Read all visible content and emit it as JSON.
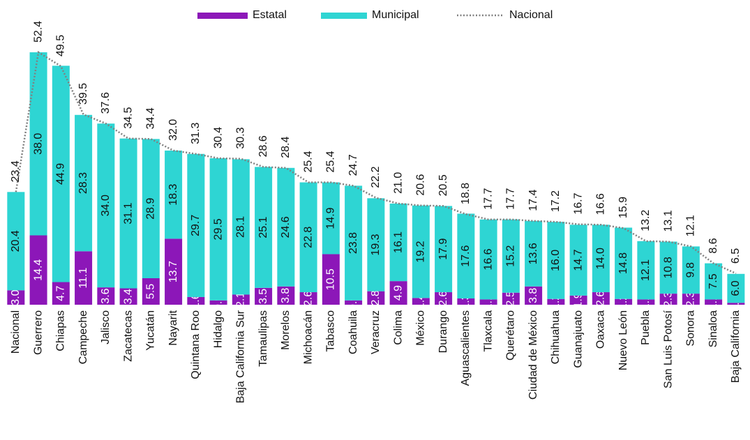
{
  "chart_data": {
    "type": "bar",
    "stacked": true,
    "categories": [
      "Nacional",
      "Guerrero",
      "Chiapas",
      "Campeche",
      "Jalisco",
      "Zacatecas",
      "Yucatán",
      "Nayarit",
      "Quintana Roo",
      "Hidalgo",
      "Baja California Sur",
      "Tamaulipas",
      "Morelos",
      "Michoacán",
      "Tabasco",
      "Coahuila",
      "Veracruz",
      "Colima",
      "México",
      "Durango",
      "Aguascalientes",
      "Tlaxcala",
      "Querétaro",
      "Ciudad de México",
      "Chihuahua",
      "Guanajuato",
      "Oaxaca",
      "Nuevo León",
      "Puebla",
      "San Luis Potosí",
      "Sonora",
      "Sinaloa",
      "Baja California"
    ],
    "series": [
      {
        "name": "Estatal",
        "color": "#8c17b8",
        "values": [
          3.0,
          14.4,
          4.7,
          11.1,
          3.6,
          3.4,
          5.5,
          13.7,
          1.6,
          0.9,
          2.1,
          3.5,
          3.8,
          2.6,
          10.5,
          0.9,
          2.8,
          4.9,
          1.4,
          2.6,
          1.3,
          1.1,
          2.5,
          3.8,
          1.2,
          1.9,
          2.6,
          1.2,
          1.1,
          2.3,
          2.3,
          1.1,
          0.4
        ],
        "value_labels": [
          "3.0",
          "14.4",
          "4.7",
          "11.1",
          "3.6",
          "3.4",
          "5.5",
          "13.7",
          "1.6",
          "0.9",
          "2.1",
          "3.5",
          "3.8",
          "2.6",
          "10.5",
          "0.9",
          "2.8",
          "4.9",
          "1.4",
          "2.6",
          "1.3",
          "1.1",
          "2.5",
          "3.8",
          "1.2",
          "1.9",
          "2.6",
          "1.2",
          "1.1",
          "2.3",
          "2.3",
          "1.1",
          "0.4"
        ]
      },
      {
        "name": "Municipal",
        "color": "#2ed5d3",
        "values": [
          20.4,
          38.0,
          44.9,
          28.3,
          34.0,
          31.1,
          28.9,
          18.3,
          29.7,
          29.5,
          28.1,
          25.1,
          24.6,
          22.8,
          14.9,
          23.8,
          19.3,
          16.1,
          19.2,
          17.9,
          17.6,
          16.6,
          15.2,
          13.6,
          16.0,
          14.7,
          14.0,
          14.8,
          12.1,
          10.8,
          9.8,
          7.5,
          6.0
        ],
        "value_labels": [
          "20.4",
          "38.0",
          "44.9",
          "28.3",
          "34.0",
          "31.1",
          "28.9",
          "18.3",
          "29.7",
          "29.5",
          "28.1",
          "25.1",
          "24.6",
          "22.8",
          "14.9",
          "23.8",
          "19.3",
          "16.1",
          "19.2",
          "17.9",
          "17.6",
          "16.6",
          "15.2",
          "13.6",
          "16.0",
          "14.7",
          "14.0",
          "14.8",
          "12.1",
          "10.8",
          "9.8",
          "7.5",
          "6.0"
        ]
      },
      {
        "name": "Nacional",
        "type": "line",
        "color": "#808080",
        "values": [
          23.4,
          52.4,
          49.5,
          39.5,
          37.6,
          34.5,
          34.4,
          32.0,
          31.3,
          30.4,
          30.3,
          28.6,
          28.4,
          25.4,
          25.4,
          24.7,
          22.2,
          21.0,
          20.6,
          20.5,
          18.8,
          17.7,
          17.7,
          17.4,
          17.2,
          16.7,
          16.6,
          15.9,
          13.2,
          13.1,
          12.1,
          8.6,
          6.5
        ],
        "value_labels": [
          "23.4",
          "52.4",
          "49.5",
          "39.5",
          "37.6",
          "34.5",
          "34.4",
          "32.0",
          "31.3",
          "30.4",
          "30.3",
          "28.6",
          "28.4",
          "25.4",
          "25.4",
          "24.7",
          "22.2",
          "21.0",
          "20.6",
          "20.5",
          "18.8",
          "17.7",
          "17.7",
          "17.4",
          "17.2",
          "16.7",
          "16.6",
          "15.9",
          "13.2",
          "13.1",
          "12.1",
          "8.6",
          "6.5"
        ]
      }
    ],
    "ylim": [
      0,
      55
    ],
    "legend": "top"
  }
}
